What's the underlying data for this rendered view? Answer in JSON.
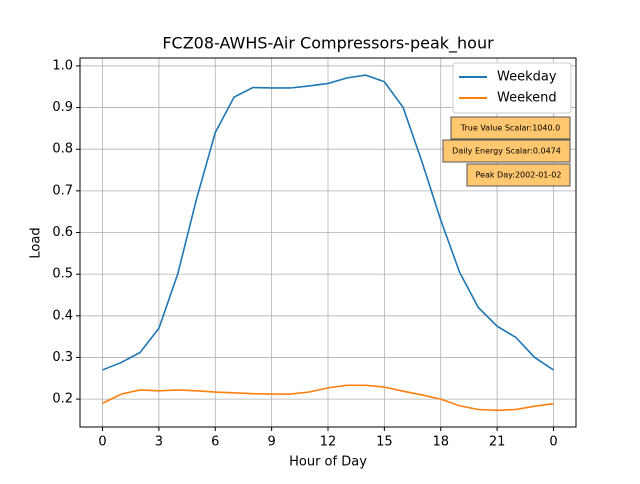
{
  "chart_data": {
    "type": "line",
    "title": "FCZ08-AWHS-Air Compressors-peak_hour",
    "x_label": "Hour of Day",
    "y_label": "Load",
    "x": [
      0,
      1,
      2,
      3,
      4,
      5,
      6,
      7,
      8,
      9,
      10,
      11,
      12,
      13,
      14,
      15,
      16,
      17,
      18,
      19,
      20,
      21,
      22,
      23,
      24
    ],
    "series": [
      {
        "name": "Weekday",
        "color": "#1f77b4",
        "values": [
          0.27,
          0.288,
          0.312,
          0.37,
          0.5,
          0.68,
          0.84,
          0.925,
          0.948,
          0.947,
          0.947,
          0.952,
          0.958,
          0.971,
          0.978,
          0.962,
          0.9,
          0.77,
          0.63,
          0.505,
          0.42,
          0.375,
          0.348,
          0.3,
          0.27
        ]
      },
      {
        "name": "Weekend",
        "color": "#ff7f0e",
        "values": [
          0.19,
          0.212,
          0.222,
          0.22,
          0.222,
          0.22,
          0.217,
          0.215,
          0.213,
          0.212,
          0.212,
          0.217,
          0.227,
          0.233,
          0.233,
          0.229,
          0.219,
          0.21,
          0.2,
          0.184,
          0.175,
          0.173,
          0.175,
          0.183,
          0.189
        ]
      }
    ],
    "xlim": [
      -1.2,
      25.2
    ],
    "ylim": [
      0.133,
      1.019
    ],
    "xticks": [
      0,
      3,
      6,
      9,
      12,
      15,
      18,
      21,
      {
        "value": 24,
        "label": "0"
      }
    ],
    "yticks": [
      0.2,
      0.3,
      0.4,
      0.5,
      0.6,
      0.7,
      0.8,
      0.9,
      {
        "value": 1,
        "label": "1.0"
      }
    ],
    "grid": true,
    "legend": "upper-right",
    "annotations": [
      "True Value Scalar:1040.0",
      "Daily Energy Scalar:0.0474",
      "Peak Day:2002-01-02"
    ]
  }
}
